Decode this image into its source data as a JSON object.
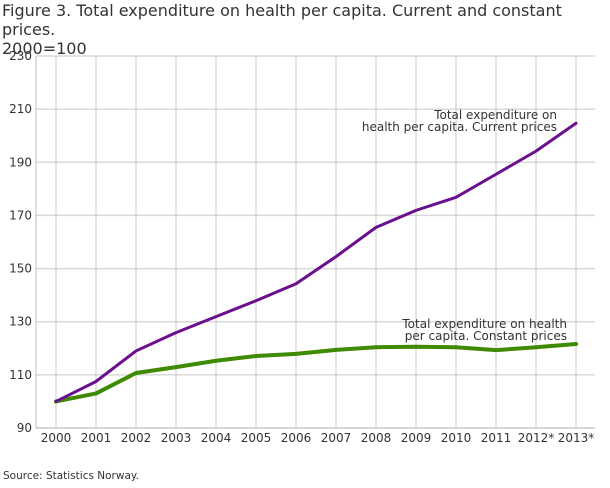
{
  "chart_data": {
    "type": "line",
    "title": "Figure 3. Total expenditure on health per capita. Current and constant prices. 2000=100",
    "title_lines": [
      "Figure 3. Total expenditure on health per capita. Current and constant prices.",
      "2000=100"
    ],
    "xlabel": "",
    "ylabel": "",
    "categories": [
      "2000",
      "2001",
      "2002",
      "2003",
      "2004",
      "2005",
      "2006",
      "2007",
      "2008",
      "2009",
      "2010",
      "2011",
      "2012*",
      "2013*"
    ],
    "ylim": [
      90,
      230
    ],
    "yticks": [
      90,
      110,
      130,
      150,
      170,
      190,
      210,
      230
    ],
    "grid": true,
    "legend": "inline annotations",
    "series": [
      {
        "name": "Total expenditure on health per capita. Current prices",
        "label_lines": [
          "Total expenditure on",
          "health per capita. Current prices"
        ],
        "color": "#6a0f8e",
        "values": [
          100,
          107.5,
          119,
          125.9,
          131.9,
          137.9,
          144.3,
          154.5,
          165.5,
          171.9,
          176.8,
          185.5,
          194.2,
          204.7
        ]
      },
      {
        "name": "Total expenditure on health per capita. Constant prices",
        "label_lines": [
          "Total expenditure on health",
          "per capita. Constant prices"
        ],
        "color": "#3e8a00",
        "values": [
          100,
          103,
          110.7,
          112.9,
          115.3,
          117.1,
          117.9,
          119.4,
          120.4,
          120.6,
          120.4,
          119.3,
          120.4,
          121.6
        ]
      }
    ],
    "source": "Source: Statistics Norway."
  }
}
